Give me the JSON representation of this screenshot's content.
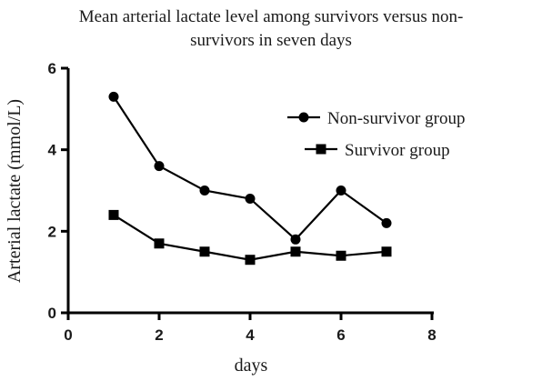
{
  "chart_data": {
    "type": "line",
    "title_lines": [
      "Mean arterial lactate level among survivors versus non-",
      "survivors in seven days"
    ],
    "xlabel": "days",
    "ylabel": "Arterial lactate (mmol/L)",
    "xlim": [
      0,
      8
    ],
    "ylim": [
      0,
      6
    ],
    "x_ticks": [
      0,
      2,
      4,
      6,
      8
    ],
    "y_ticks": [
      0,
      2,
      4,
      6
    ],
    "grid": false,
    "legend_position": "top-right",
    "x": [
      1,
      2,
      3,
      4,
      5,
      6,
      7
    ],
    "series": [
      {
        "name": "Non-survivor group",
        "marker": "circle",
        "values": [
          5.3,
          3.6,
          3.0,
          2.8,
          1.8,
          3.0,
          2.2
        ]
      },
      {
        "name": "Survivor group",
        "marker": "square",
        "values": [
          2.4,
          1.7,
          1.5,
          1.3,
          1.5,
          1.4,
          1.5
        ]
      }
    ]
  }
}
